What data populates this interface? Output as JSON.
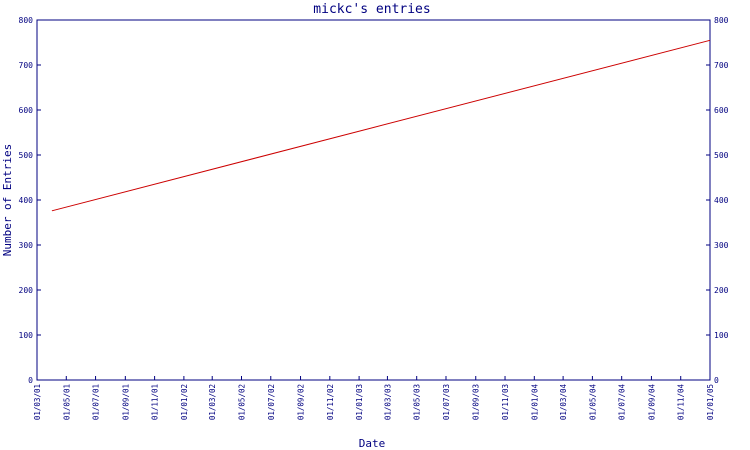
{
  "chart_data": {
    "type": "line",
    "title": "mickc's entries",
    "xlabel": "Date",
    "ylabel": "Number of Entries",
    "x_ticks": [
      "01/03/01",
      "01/05/01",
      "01/07/01",
      "01/09/01",
      "01/11/01",
      "01/01/02",
      "01/03/02",
      "01/05/02",
      "01/07/02",
      "01/09/02",
      "01/11/02",
      "01/01/03",
      "01/03/03",
      "01/05/03",
      "01/07/03",
      "01/09/03",
      "01/11/03",
      "01/01/04",
      "01/03/04",
      "01/05/04",
      "01/07/04",
      "01/09/04",
      "01/11/04",
      "01/01/05"
    ],
    "y_ticks": [
      0,
      100,
      200,
      300,
      400,
      500,
      600,
      700,
      800
    ],
    "ylim": [
      0,
      800
    ],
    "xlim": [
      "01/03/01",
      "01/01/05"
    ],
    "grid": false,
    "secondary_y_axis": true,
    "series": [
      {
        "color": "#cc0000",
        "points": [
          {
            "x": "01/04/01",
            "y": 376
          },
          {
            "x": "01/01/05",
            "y": 755
          }
        ]
      }
    ],
    "colors": {
      "axis": "#000080",
      "title": "#000080",
      "tick_label": "#000080",
      "line": "#cc0000"
    }
  }
}
